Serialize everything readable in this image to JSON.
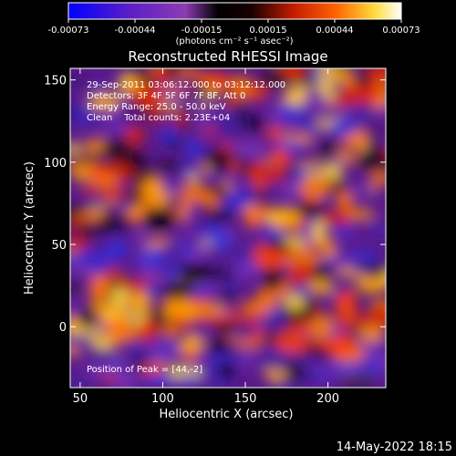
{
  "chart_data": {
    "type": "heatmap",
    "title": "Reconstructed RHESSI Image",
    "xlabel": "Heliocentric X (arcsec)",
    "ylabel": "Heliocentric Y (arcsec)",
    "xlim": [
      44,
      235
    ],
    "ylim": [
      -37,
      157
    ],
    "x_ticks": [
      50,
      100,
      150,
      200
    ],
    "y_ticks": [
      0,
      50,
      100,
      150
    ],
    "colorbar": {
      "ticks": [
        "-0.00073",
        "-0.00044",
        "-0.00015",
        "0.00015",
        "0.00044",
        "0.00073"
      ],
      "range": [
        -0.00073,
        0.00073
      ],
      "units": "(photons cm⁻² s⁻¹ asec⁻²)",
      "colors": [
        "#0000ff",
        "#5a1ec8",
        "#8c3cb4",
        "#000000",
        "#c81e00",
        "#ff4000",
        "#ff9600",
        "#ffdc3c",
        "#ffffff"
      ]
    },
    "annotations": [
      "29-Sep-2011 03:06:12.000 to 03:12:12.000",
      "Detectors: 3F 4F 5F 6F 7F 8F, Att 0",
      "Energy Range: 25.0 - 50.0 keV",
      "Clean    Total counts: 2.23E+04"
    ],
    "peak_label": "Position of Peak = [44,-2]",
    "peak": [
      44,
      -2
    ]
  },
  "footer": {
    "timestamp": "14-May-2022 18:15"
  }
}
